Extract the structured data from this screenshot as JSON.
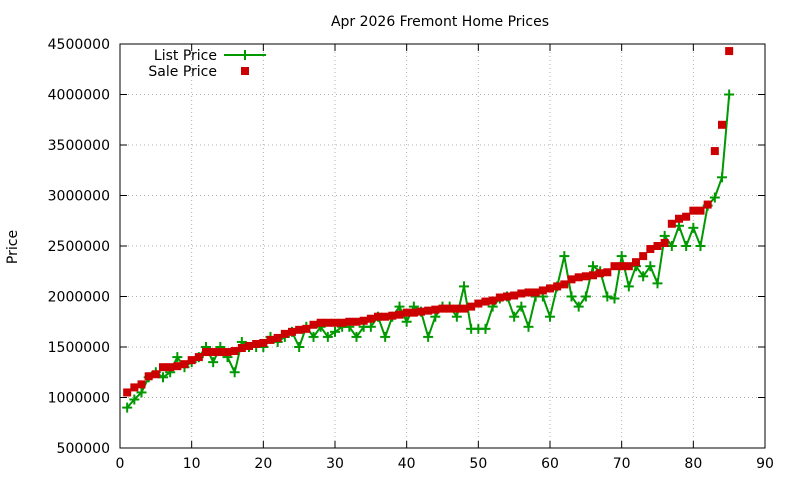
{
  "chart_data": {
    "type": "line",
    "title": "Apr 2026 Fremont Home Prices",
    "xlabel": "",
    "ylabel": "Price",
    "xlim": [
      0,
      90
    ],
    "ylim": [
      500000,
      4500000
    ],
    "xticks": [
      0,
      10,
      20,
      30,
      40,
      50,
      60,
      70,
      80,
      90
    ],
    "yticks": [
      500000,
      1000000,
      1500000,
      2000000,
      2500000,
      3000000,
      3500000,
      4000000,
      4500000
    ],
    "grid": true,
    "legend_position": "top-left",
    "series": [
      {
        "name": "List Price",
        "style": "linespoints",
        "marker": "plus",
        "color": "#009900",
        "x": [
          1,
          2,
          3,
          4,
          5,
          6,
          7,
          8,
          9,
          10,
          11,
          12,
          13,
          14,
          15,
          16,
          17,
          18,
          19,
          20,
          21,
          22,
          23,
          24,
          25,
          26,
          27,
          28,
          29,
          30,
          31,
          32,
          33,
          34,
          35,
          36,
          37,
          38,
          39,
          40,
          41,
          42,
          43,
          44,
          45,
          46,
          47,
          48,
          49,
          50,
          51,
          52,
          53,
          54,
          55,
          56,
          57,
          58,
          59,
          60,
          61,
          62,
          63,
          64,
          65,
          66,
          67,
          68,
          69,
          70,
          71,
          72,
          73,
          74,
          75,
          76,
          77,
          78,
          79,
          80,
          81,
          82,
          83,
          84,
          85
        ],
        "values": [
          900000,
          980000,
          1050000,
          1200000,
          1250000,
          1200000,
          1250000,
          1400000,
          1300000,
          1350000,
          1400000,
          1500000,
          1350000,
          1500000,
          1400000,
          1250000,
          1550000,
          1500000,
          1500000,
          1500000,
          1600000,
          1550000,
          1600000,
          1650000,
          1500000,
          1700000,
          1600000,
          1700000,
          1600000,
          1650000,
          1700000,
          1700000,
          1600000,
          1700000,
          1700000,
          1800000,
          1600000,
          1800000,
          1900000,
          1750000,
          1900000,
          1850000,
          1600000,
          1800000,
          1900000,
          1900000,
          1800000,
          2100000,
          1680000,
          1680000,
          1680000,
          1900000,
          1980000,
          2000000,
          1800000,
          1900000,
          1700000,
          2000000,
          2000000,
          1800000,
          2100000,
          2400000,
          2000000,
          1900000,
          2000000,
          2300000,
          2250000,
          2000000,
          1980000,
          2400000,
          2100000,
          2300000,
          2200000,
          2300000,
          2130000,
          2600000,
          2500000,
          2700000,
          2500000,
          2680000,
          2500000,
          2900000,
          2980000,
          3180000,
          4000000
        ]
      },
      {
        "name": "Sale Price",
        "style": "points",
        "marker": "square",
        "color": "#cc0000",
        "x": [
          1,
          2,
          3,
          4,
          5,
          6,
          7,
          8,
          9,
          10,
          11,
          12,
          13,
          14,
          15,
          16,
          17,
          18,
          19,
          20,
          21,
          22,
          23,
          24,
          25,
          26,
          27,
          28,
          29,
          30,
          31,
          32,
          33,
          34,
          35,
          36,
          37,
          38,
          39,
          40,
          41,
          42,
          43,
          44,
          45,
          46,
          47,
          48,
          49,
          50,
          51,
          52,
          53,
          54,
          55,
          56,
          57,
          58,
          59,
          60,
          61,
          62,
          63,
          64,
          65,
          66,
          67,
          68,
          69,
          70,
          71,
          72,
          73,
          74,
          75,
          76,
          77,
          78,
          79,
          80,
          81,
          82,
          83,
          84,
          85
        ],
        "values": [
          1050000,
          1100000,
          1130000,
          1210000,
          1230000,
          1300000,
          1300000,
          1310000,
          1330000,
          1370000,
          1400000,
          1450000,
          1450000,
          1450000,
          1450000,
          1460000,
          1490000,
          1510000,
          1530000,
          1540000,
          1570000,
          1590000,
          1630000,
          1650000,
          1670000,
          1680000,
          1720000,
          1740000,
          1740000,
          1740000,
          1740000,
          1750000,
          1750000,
          1760000,
          1780000,
          1800000,
          1800000,
          1810000,
          1820000,
          1840000,
          1840000,
          1850000,
          1860000,
          1870000,
          1880000,
          1880000,
          1880000,
          1880000,
          1900000,
          1930000,
          1950000,
          1960000,
          1990000,
          2000000,
          2010000,
          2030000,
          2040000,
          2040000,
          2060000,
          2080000,
          2100000,
          2120000,
          2170000,
          2190000,
          2200000,
          2210000,
          2230000,
          2240000,
          2300000,
          2300000,
          2300000,
          2340000,
          2400000,
          2470000,
          2500000,
          2530000,
          2720000,
          2770000,
          2790000,
          2850000,
          2850000,
          2910000,
          3440000,
          3700000,
          4430000
        ]
      }
    ]
  }
}
